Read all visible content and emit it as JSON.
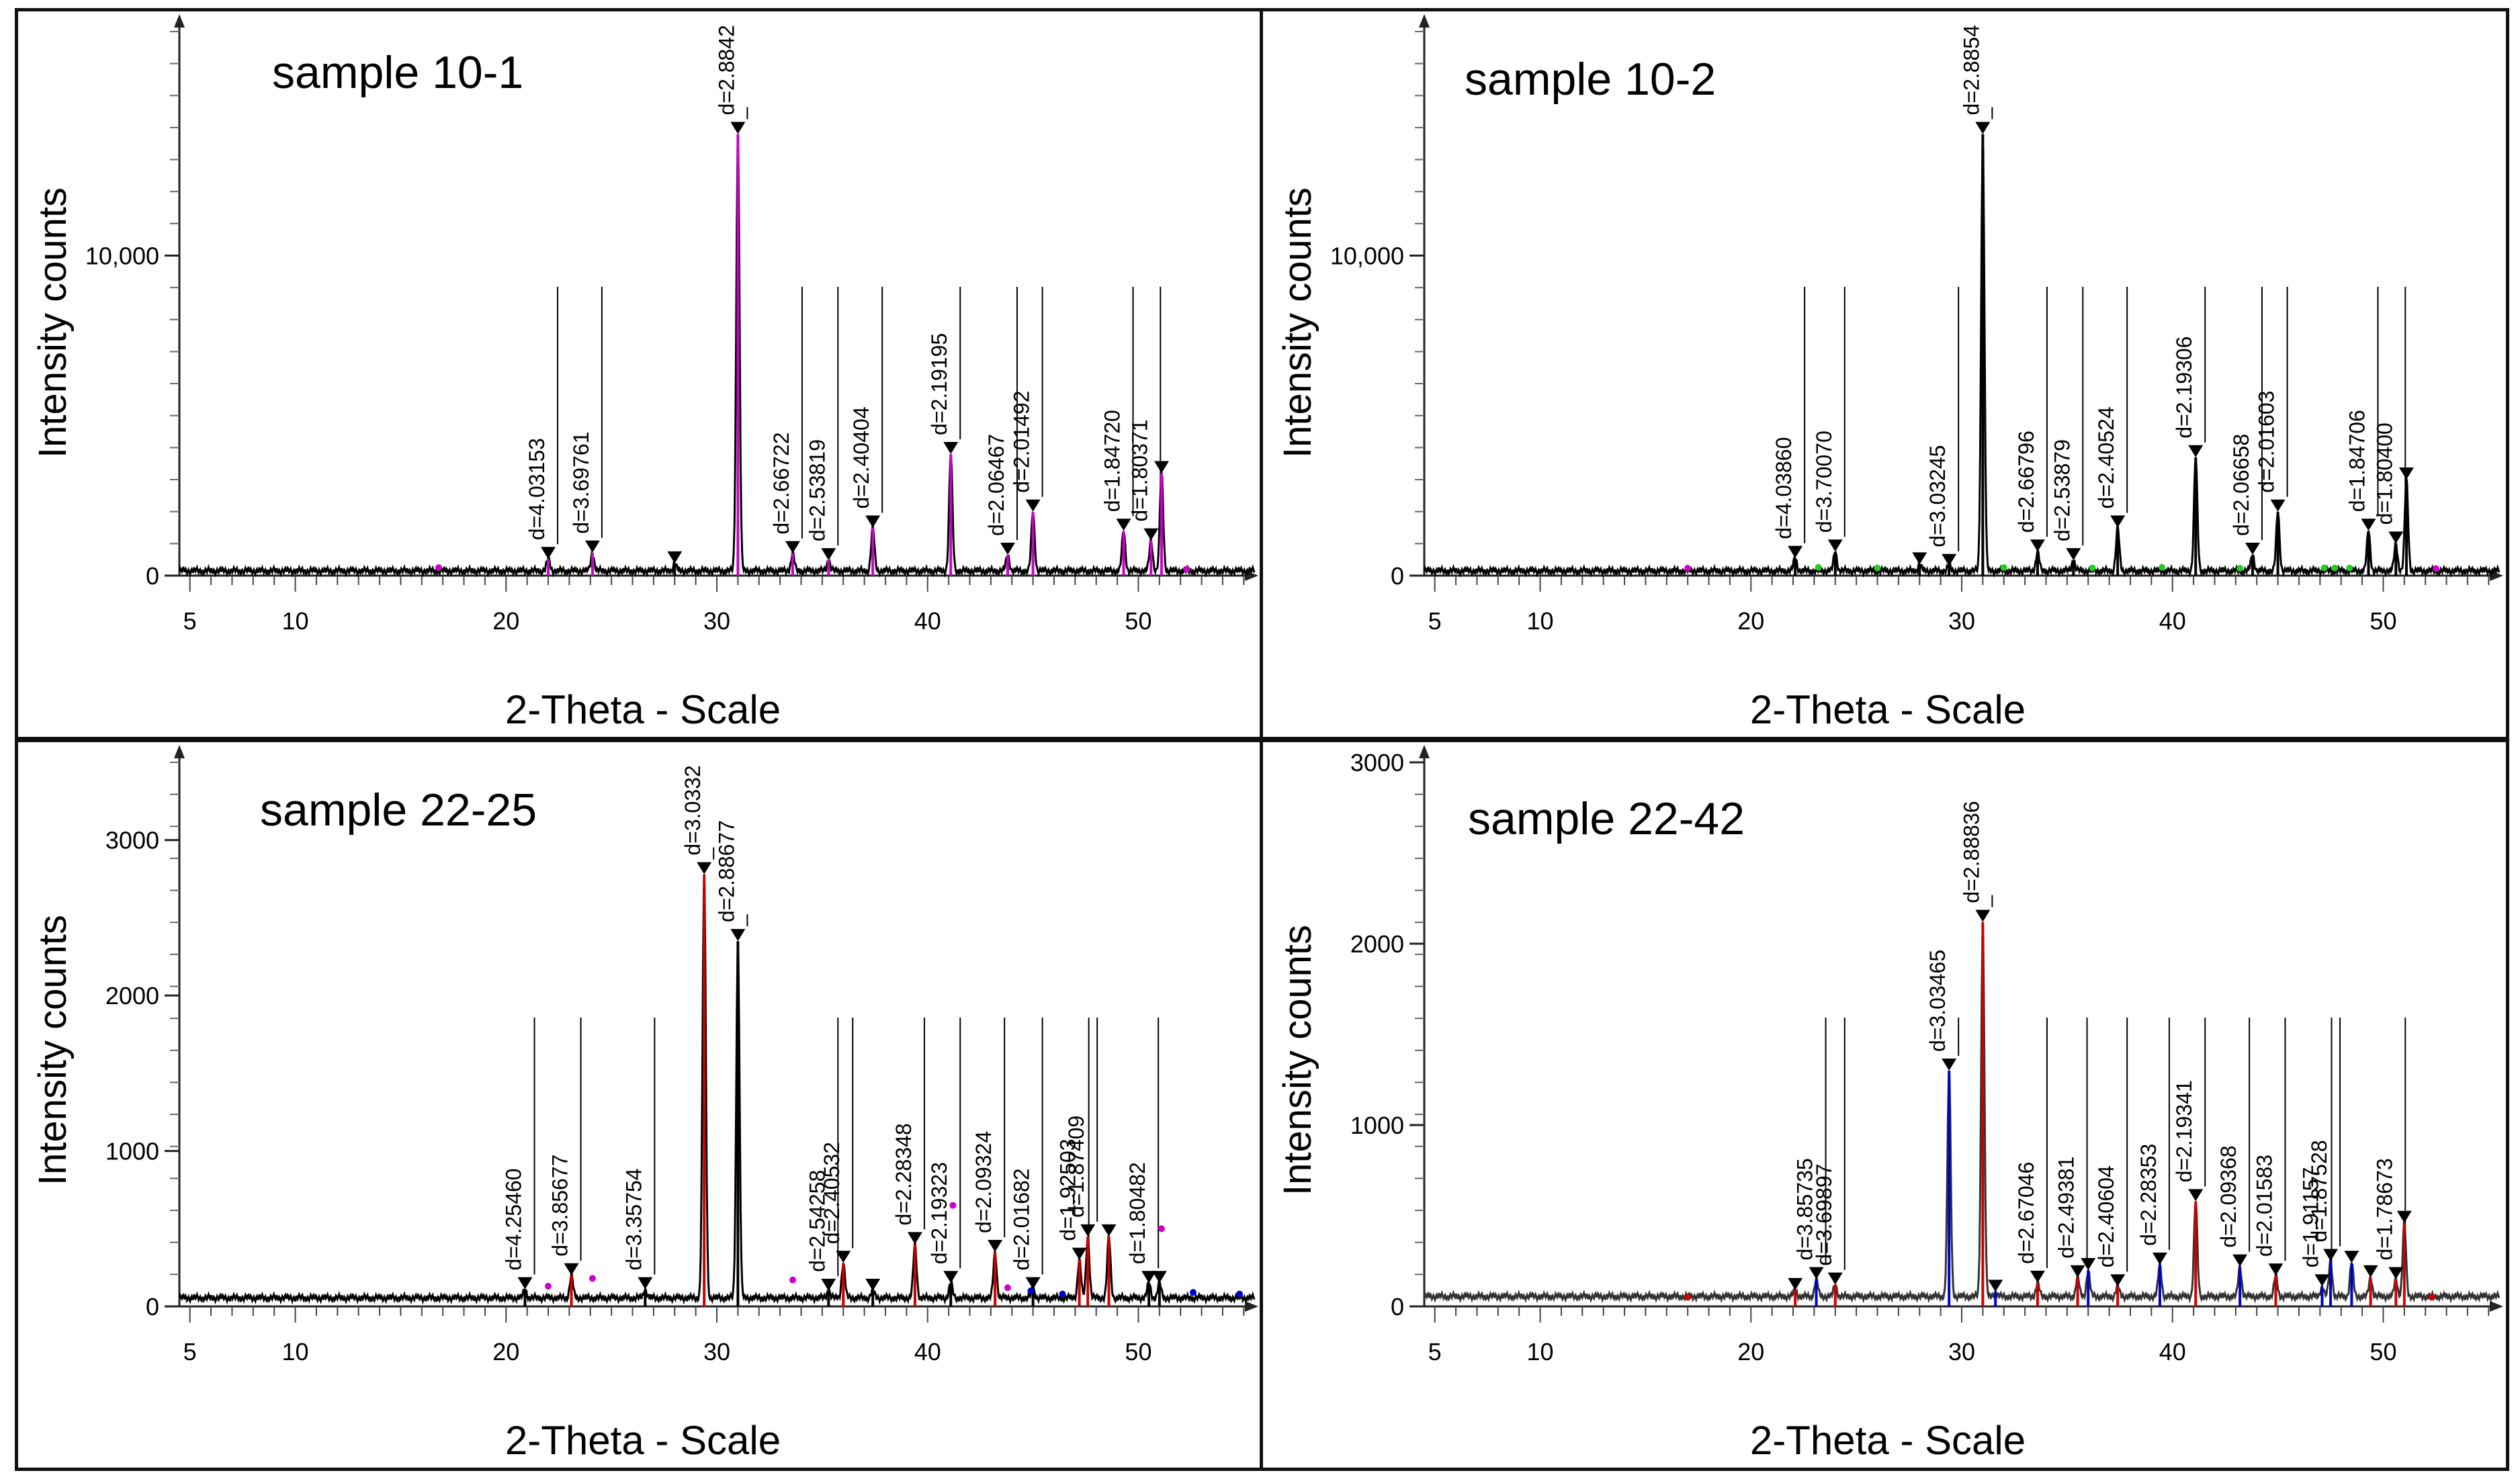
{
  "chart_data": [
    {
      "type": "line",
      "title": "sample 10-1",
      "xlabel": "2-Theta - Scale",
      "ylabel": "Intensity counts",
      "xlim": [
        4.5,
        55.5
      ],
      "ylim": [
        0,
        17000
      ],
      "x_ticks": [
        5,
        10,
        20,
        30,
        40,
        50
      ],
      "y_ticks": [
        {
          "value": 0,
          "label": "0"
        },
        {
          "value": 10000,
          "label": "10,000"
        }
      ],
      "line_color": "#000000",
      "baseline": 150,
      "peaks": [
        {
          "x": 22.0,
          "y": 520,
          "label": "d=4.03153",
          "color": "#cc00cc"
        },
        {
          "x": 24.1,
          "y": 720,
          "label": "d=3.69761",
          "color": "#cc00cc"
        },
        {
          "x": 28.0,
          "y": 380,
          "label": "",
          "color": "#000000"
        },
        {
          "x": 31.0,
          "y": 13800,
          "label": "d=2.8842",
          "color": "#cc00cc"
        },
        {
          "x": 33.6,
          "y": 700,
          "label": "d=2.66722",
          "color": "#cc00cc"
        },
        {
          "x": 35.3,
          "y": 480,
          "label": "d=2.53819",
          "color": "#cc00cc"
        },
        {
          "x": 37.4,
          "y": 1500,
          "label": "d=2.40404",
          "color": "#cc00cc"
        },
        {
          "x": 41.1,
          "y": 3800,
          "label": "d=2.19195",
          "color": "#cc00cc"
        },
        {
          "x": 43.8,
          "y": 650,
          "label": "d=2.06467",
          "color": "#cc00cc"
        },
        {
          "x": 45.0,
          "y": 2000,
          "label": "d=2.01492",
          "color": "#cc00cc"
        },
        {
          "x": 49.3,
          "y": 1400,
          "label": "d=1.84720",
          "color": "#cc00cc"
        },
        {
          "x": 50.6,
          "y": 1100,
          "label": "d=1.80371",
          "color": "#cc00cc"
        },
        {
          "x": 51.1,
          "y": 3200,
          "label": "",
          "color": "#cc00cc"
        }
      ],
      "minor_markers": [
        {
          "x": 16.8,
          "y": 250,
          "color": "#cc00cc"
        },
        {
          "x": 52.3,
          "y": 200,
          "color": "#cc00cc"
        }
      ]
    },
    {
      "type": "line",
      "title": "sample 10-2",
      "xlabel": "2-Theta - Scale",
      "ylabel": "Intensity counts",
      "xlim": [
        4.5,
        55.5
      ],
      "ylim": [
        0,
        17000
      ],
      "x_ticks": [
        5,
        10,
        20,
        30,
        40,
        50
      ],
      "y_ticks": [
        {
          "value": 0,
          "label": "0"
        },
        {
          "value": 10000,
          "label": "10,000"
        }
      ],
      "line_color": "#000000",
      "baseline": 150,
      "peaks": [
        {
          "x": 22.1,
          "y": 550,
          "label": "d=4.03860",
          "color": "#000000"
        },
        {
          "x": 24.0,
          "y": 750,
          "label": "d=3.70070",
          "color": "#000000"
        },
        {
          "x": 28.0,
          "y": 350,
          "label": "",
          "color": "#000000"
        },
        {
          "x": 29.4,
          "y": 300,
          "label": "d=3.03245",
          "color": "#000000"
        },
        {
          "x": 31.0,
          "y": 13800,
          "label": "d=2.8854",
          "color": "#000000"
        },
        {
          "x": 33.6,
          "y": 750,
          "label": "d=2.66796",
          "color": "#000000"
        },
        {
          "x": 35.3,
          "y": 480,
          "label": "d=2.53879",
          "color": "#000000"
        },
        {
          "x": 37.4,
          "y": 1500,
          "label": "d=2.40524",
          "color": "#000000"
        },
        {
          "x": 41.1,
          "y": 3700,
          "label": "d=2.19306",
          "color": "#000000"
        },
        {
          "x": 43.8,
          "y": 650,
          "label": "d=2.06658",
          "color": "#000000"
        },
        {
          "x": 45.0,
          "y": 2000,
          "label": "d=2.01603",
          "color": "#000000"
        },
        {
          "x": 49.3,
          "y": 1400,
          "label": "d=1.84706",
          "color": "#000000"
        },
        {
          "x": 50.6,
          "y": 1000,
          "label": "d=1.80400",
          "color": "#000000"
        },
        {
          "x": 51.1,
          "y": 3000,
          "label": "",
          "color": "#000000"
        }
      ],
      "minor_markers": [
        {
          "x": 17.0,
          "y": 230,
          "color": "#cc00cc"
        },
        {
          "x": 23.2,
          "y": 260,
          "color": "#22cc22"
        },
        {
          "x": 26.0,
          "y": 240,
          "color": "#22cc22"
        },
        {
          "x": 32.0,
          "y": 250,
          "color": "#22cc22"
        },
        {
          "x": 36.2,
          "y": 240,
          "color": "#22cc22"
        },
        {
          "x": 39.5,
          "y": 260,
          "color": "#22cc22"
        },
        {
          "x": 43.2,
          "y": 230,
          "color": "#22cc22"
        },
        {
          "x": 47.2,
          "y": 240,
          "color": "#22cc22"
        },
        {
          "x": 47.7,
          "y": 240,
          "color": "#22cc22"
        },
        {
          "x": 48.4,
          "y": 240,
          "color": "#22cc22"
        },
        {
          "x": 52.5,
          "y": 220,
          "color": "#cc00cc"
        }
      ]
    },
    {
      "type": "line",
      "title": "sample 22-25",
      "xlabel": "2-Theta - Scale",
      "ylabel": "Intensity counts",
      "xlim": [
        4.5,
        55.5
      ],
      "ylim": [
        0,
        3500
      ],
      "x_ticks": [
        5,
        10,
        20,
        30,
        40,
        50
      ],
      "y_ticks": [
        {
          "value": 0,
          "label": "0"
        },
        {
          "value": 1000,
          "label": "1000"
        },
        {
          "value": 2000,
          "label": "2000"
        },
        {
          "value": 3000,
          "label": "3000"
        }
      ],
      "line_color": "#000000",
      "baseline": 55,
      "peaks": [
        {
          "x": 20.9,
          "y": 110,
          "label": "d=4.25460",
          "color": "#000000"
        },
        {
          "x": 23.1,
          "y": 200,
          "label": "d=3.85677",
          "color": "#cc0000"
        },
        {
          "x": 26.6,
          "y": 110,
          "label": "d=3.35754",
          "color": "#000000"
        },
        {
          "x": 29.4,
          "y": 2780,
          "label": "d=3.0332",
          "color": "#cc0000"
        },
        {
          "x": 31.0,
          "y": 2350,
          "label": "d=2.88677",
          "color": "#000000"
        },
        {
          "x": 35.3,
          "y": 100,
          "label": "d=2.54258",
          "color": "#000000"
        },
        {
          "x": 36.0,
          "y": 280,
          "label": "d=2.40532",
          "color": "#cc0000"
        },
        {
          "x": 37.4,
          "y": 100,
          "label": "",
          "color": "#000000"
        },
        {
          "x": 39.4,
          "y": 400,
          "label": "d=2.28348",
          "color": "#cc0000"
        },
        {
          "x": 41.1,
          "y": 150,
          "label": "d=2.19323",
          "color": "#000000"
        },
        {
          "x": 43.2,
          "y": 350,
          "label": "d=2.09324",
          "color": "#cc0000"
        },
        {
          "x": 45.0,
          "y": 110,
          "label": "d=2.01682",
          "color": "#000000"
        },
        {
          "x": 47.2,
          "y": 300,
          "label": "d=1.92503",
          "color": "#cc0000"
        },
        {
          "x": 47.6,
          "y": 450,
          "label": "d=1.87409",
          "color": "#cc0000"
        },
        {
          "x": 48.6,
          "y": 450,
          "label": "",
          "color": "#cc0000"
        },
        {
          "x": 50.5,
          "y": 150,
          "label": "d=1.80482",
          "color": "#000000"
        },
        {
          "x": 51.0,
          "y": 150,
          "label": "",
          "color": "#000000"
        }
      ],
      "minor_markers": [
        {
          "x": 22.0,
          "y": 130,
          "color": "#cc00cc"
        },
        {
          "x": 24.1,
          "y": 180,
          "color": "#cc00cc"
        },
        {
          "x": 33.6,
          "y": 170,
          "color": "#cc00cc"
        },
        {
          "x": 41.2,
          "y": 650,
          "color": "#cc00cc"
        },
        {
          "x": 43.8,
          "y": 120,
          "color": "#cc00cc"
        },
        {
          "x": 44.9,
          "y": 100,
          "color": "#0000cc"
        },
        {
          "x": 46.4,
          "y": 80,
          "color": "#0000cc"
        },
        {
          "x": 51.1,
          "y": 500,
          "color": "#cc00cc"
        },
        {
          "x": 52.6,
          "y": 90,
          "color": "#0000cc"
        },
        {
          "x": 54.8,
          "y": 80,
          "color": "#0000cc"
        }
      ]
    },
    {
      "type": "line",
      "title": "sample 22-42",
      "xlabel": "2-Theta - Scale",
      "ylabel": "Intensity counts",
      "xlim": [
        4.5,
        55.5
      ],
      "ylim": [
        0,
        3000
      ],
      "x_ticks": [
        5,
        10,
        20,
        30,
        40,
        50
      ],
      "y_ticks": [
        {
          "value": 0,
          "label": "0"
        },
        {
          "value": 1000,
          "label": "1000"
        },
        {
          "value": 2000,
          "label": "2000"
        },
        {
          "value": 3000,
          "label": "3000"
        }
      ],
      "line_color": "#333333",
      "baseline": 55,
      "peaks": [
        {
          "x": 22.1,
          "y": 90,
          "label": "",
          "color": "#cc0000"
        },
        {
          "x": 23.1,
          "y": 150,
          "label": "d=3.85735",
          "color": "#0000cc"
        },
        {
          "x": 24.0,
          "y": 120,
          "label": "d=3.69897",
          "color": "#cc0000"
        },
        {
          "x": 29.4,
          "y": 1300,
          "label": "d=3.03465",
          "color": "#0000cc"
        },
        {
          "x": 31.0,
          "y": 2120,
          "label": "d=2.88836",
          "color": "#cc0000"
        },
        {
          "x": 31.6,
          "y": 80,
          "label": "",
          "color": "#0000cc"
        },
        {
          "x": 33.6,
          "y": 130,
          "label": "d=2.67046",
          "color": "#cc0000"
        },
        {
          "x": 35.5,
          "y": 160,
          "label": "d=2.49381",
          "color": "#cc0000"
        },
        {
          "x": 36.0,
          "y": 200,
          "label": "",
          "color": "#0000cc"
        },
        {
          "x": 37.4,
          "y": 110,
          "label": "d=2.40604",
          "color": "#cc0000"
        },
        {
          "x": 39.4,
          "y": 230,
          "label": "d=2.28353",
          "color": "#0000cc"
        },
        {
          "x": 41.1,
          "y": 580,
          "label": "d=2.19341",
          "color": "#cc0000"
        },
        {
          "x": 43.2,
          "y": 220,
          "label": "d=2.09368",
          "color": "#0000cc"
        },
        {
          "x": 44.9,
          "y": 170,
          "label": "d=2.01583",
          "color": "#cc0000"
        },
        {
          "x": 47.1,
          "y": 110,
          "label": "d=1.91157",
          "color": "#0000cc"
        },
        {
          "x": 47.5,
          "y": 250,
          "label": "d=1.87528",
          "color": "#0000cc"
        },
        {
          "x": 48.5,
          "y": 240,
          "label": "",
          "color": "#0000cc"
        },
        {
          "x": 49.4,
          "y": 160,
          "label": "",
          "color": "#cc0000"
        },
        {
          "x": 50.6,
          "y": 150,
          "label": "d=1.78673",
          "color": "#cc0000"
        },
        {
          "x": 51.0,
          "y": 460,
          "label": "",
          "color": "#cc0000"
        }
      ],
      "minor_markers": [
        {
          "x": 17.0,
          "y": 50,
          "color": "#cc0000"
        },
        {
          "x": 52.3,
          "y": 50,
          "color": "#cc0000"
        }
      ]
    }
  ]
}
